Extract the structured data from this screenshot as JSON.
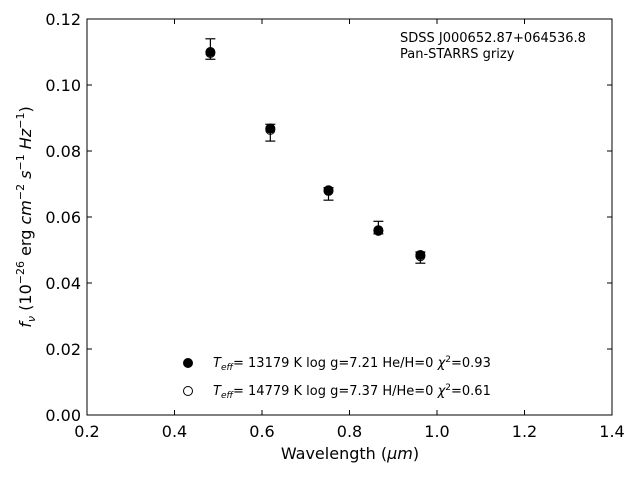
{
  "chart_data": {
    "type": "scatter",
    "xlabel_main": "Wavelength (",
    "xlabel_unit": "μm",
    "xlabel_end": ")",
    "ylabel_parts": {
      "f": "f",
      "nu": "ν",
      "open": " (10",
      "exp26": "−26",
      "erg": " erg ",
      "cm": "cm",
      "exp2": "−2",
      "s": " s",
      "exp1": "−1",
      "hz": " Hz",
      "exp1b": "−1",
      "close": ")"
    },
    "xlim": [
      0.2,
      1.4
    ],
    "ylim": [
      0.0,
      0.12
    ],
    "xticks": [
      0.2,
      0.4,
      0.6,
      0.8,
      1.0,
      1.2,
      1.4
    ],
    "yticks": [
      0.0,
      0.02,
      0.04,
      0.06,
      0.08,
      0.1,
      0.12
    ],
    "xtick_labels": [
      "0.2",
      "0.4",
      "0.6",
      "0.8",
      "1.0",
      "1.2",
      "1.4"
    ],
    "ytick_labels": [
      "0.00",
      "0.02",
      "0.04",
      "0.06",
      "0.08",
      "0.10",
      "0.12"
    ],
    "annotation_line1": "SDSS J000652.87+064536.8",
    "annotation_line2": "Pan-STARRS grizy",
    "observed": {
      "x": [
        0.482,
        0.619,
        0.752,
        0.866,
        0.962
      ],
      "y": [
        0.1105,
        0.0858,
        0.067,
        0.0563,
        0.0478
      ],
      "yerr_low": [
        0.0027,
        0.0028,
        0.0019,
        0.0014,
        0.0018
      ],
      "yerr_high": [
        0.0035,
        0.0023,
        0.0019,
        0.0024,
        0.0016
      ]
    },
    "series": [
      {
        "label_teff": "T",
        "label_eff": "eff",
        "label_rest": "= 13179 K  log g=7.21  He/H=0  ",
        "label_chi": "χ",
        "label_chi2": "2",
        "label_chi_val": "=0.93",
        "marker": "filled",
        "x": [
          0.482,
          0.619,
          0.752,
          0.866,
          0.962
        ],
        "y": [
          0.11,
          0.0868,
          0.0681,
          0.056,
          0.0485
        ]
      },
      {
        "label_teff": "T",
        "label_eff": "eff",
        "label_rest": "= 14779 K  log g=7.37  H/He=0  ",
        "label_chi": "χ",
        "label_chi2": "2",
        "label_chi_val": "=0.61",
        "marker": "open",
        "x": [
          0.482,
          0.619,
          0.752,
          0.866,
          0.962
        ],
        "y": [
          0.1097,
          0.0864,
          0.0679,
          0.0558,
          0.0481
        ]
      }
    ]
  }
}
